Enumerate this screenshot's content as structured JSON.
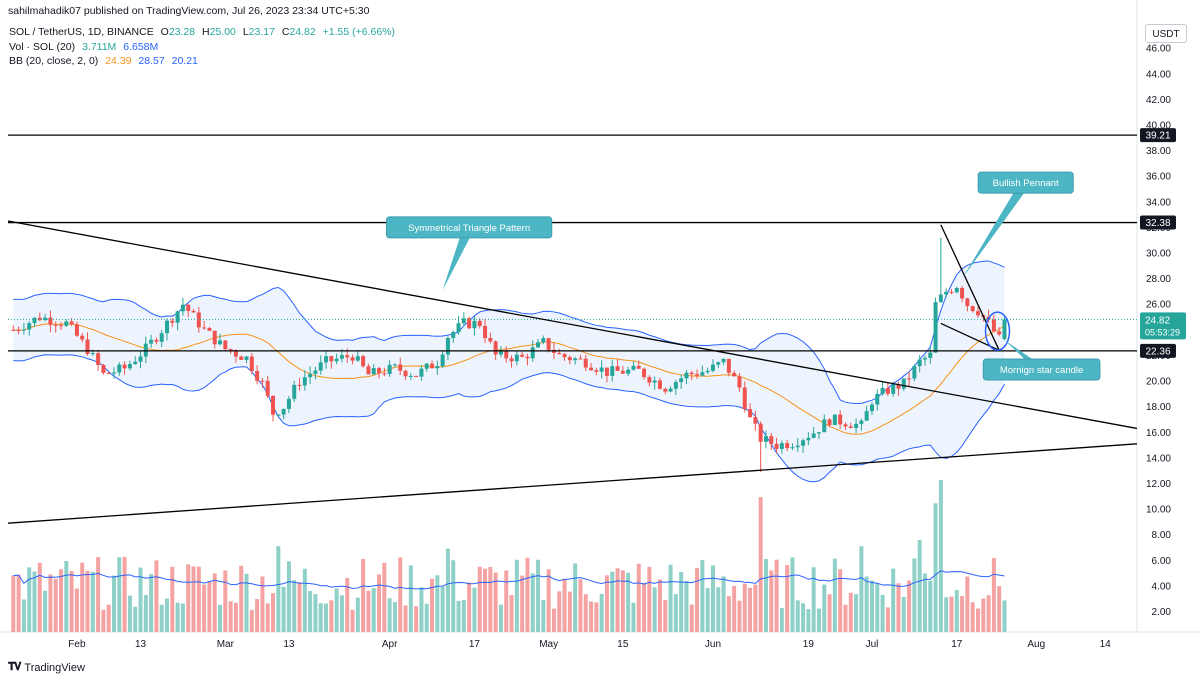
{
  "header": {
    "publish_line": "sahilmahadik07 published on TradingView.com, Jul 26, 2023 23:34 UTC+5:30",
    "symbol_line": "SOL / TetherUS, 1D, BINANCE",
    "ohlc": {
      "o_label": "O",
      "o": "23.28",
      "h_label": "H",
      "h": "25.00",
      "l_label": "L",
      "l": "23.17",
      "c_label": "C",
      "c": "24.82",
      "change": "+1.55 (+6.66%)"
    },
    "vol_line": {
      "label": "Vol · SOL (20)",
      "v1": "3.711M",
      "v2": "6.658M"
    },
    "bb_line": {
      "label": "BB (20, close, 2, 0)",
      "basis": "24.39",
      "upper": "28.57",
      "lower": "20.21"
    }
  },
  "currency": "USDT",
  "footer_logo": "TradingView",
  "colors": {
    "bull": "#26a69a",
    "bear": "#ef5350",
    "vol_bull": "#8fd1c8",
    "vol_bear": "#f5a3a2",
    "bb_band": "#2962ff",
    "bb_basis": "#f7931a",
    "bb_fill": "#e3ecfb",
    "line": "#000000",
    "callout": "#4db6c4",
    "accent": "#131722"
  },
  "chart_data": {
    "type": "candlestick",
    "title": "SOL / TetherUS, 1D, BINANCE",
    "y_axis": {
      "min": 0.4,
      "max": 48.2,
      "ticks": [
        2,
        4,
        6,
        8,
        10,
        12,
        14,
        16,
        18,
        20,
        22,
        24,
        26,
        28,
        30,
        32,
        34,
        36,
        38,
        40,
        42,
        44,
        46
      ]
    },
    "x_axis": {
      "labels": [
        {
          "date": "2023-02-01",
          "text": "Feb"
        },
        {
          "date": "2023-02-13",
          "text": "13"
        },
        {
          "date": "2023-03-01",
          "text": "Mar"
        },
        {
          "date": "2023-03-13",
          "text": "13"
        },
        {
          "date": "2023-04-01",
          "text": "Apr"
        },
        {
          "date": "2023-04-17",
          "text": "17"
        },
        {
          "date": "2023-05-01",
          "text": "May"
        },
        {
          "date": "2023-05-15",
          "text": "15"
        },
        {
          "date": "2023-06-01",
          "text": "Jun"
        },
        {
          "date": "2023-06-19",
          "text": "19"
        },
        {
          "date": "2023-07-01",
          "text": "Jul"
        },
        {
          "date": "2023-07-17",
          "text": "17"
        },
        {
          "date": "2023-08-01",
          "text": "Aug"
        },
        {
          "date": "2023-08-14",
          "text": "14"
        }
      ],
      "first_date": "2023-01-19",
      "last_date": "2023-08-20"
    },
    "first_candle_date": "2023-01-20",
    "price_path": [
      [
        "2023-01-20",
        24.0
      ],
      [
        "2023-01-25",
        25.0
      ],
      [
        "2023-01-30",
        24.5
      ],
      [
        "2023-02-03",
        22.5
      ],
      [
        "2023-02-06",
        20.5
      ],
      [
        "2023-02-10",
        21.0
      ],
      [
        "2023-02-14",
        22.5
      ],
      [
        "2023-02-18",
        24.5
      ],
      [
        "2023-02-21",
        26.0
      ],
      [
        "2023-02-25",
        24.0
      ],
      [
        "2023-03-01",
        22.5
      ],
      [
        "2023-03-05",
        21.8
      ],
      [
        "2023-03-08",
        19.8
      ],
      [
        "2023-03-10",
        17.5
      ],
      [
        "2023-03-12",
        18.0
      ],
      [
        "2023-03-15",
        20.0
      ],
      [
        "2023-03-20",
        21.5
      ],
      [
        "2023-03-25",
        22.0
      ],
      [
        "2023-03-28",
        20.5
      ],
      [
        "2023-04-02",
        21.0
      ],
      [
        "2023-04-06",
        20.5
      ],
      [
        "2023-04-10",
        21.5
      ],
      [
        "2023-04-12",
        23.5
      ],
      [
        "2023-04-15",
        24.5
      ],
      [
        "2023-04-18",
        24.5
      ],
      [
        "2023-04-21",
        22.0
      ],
      [
        "2023-04-26",
        21.8
      ],
      [
        "2023-04-30",
        23.0
      ],
      [
        "2023-05-03",
        22.0
      ],
      [
        "2023-05-08",
        21.5
      ],
      [
        "2023-05-12",
        20.7
      ],
      [
        "2023-05-18",
        20.8
      ],
      [
        "2023-05-23",
        19.5
      ],
      [
        "2023-05-27",
        20.5
      ],
      [
        "2023-05-31",
        20.8
      ],
      [
        "2023-06-03",
        21.5
      ],
      [
        "2023-06-06",
        19.5
      ],
      [
        "2023-06-08",
        17.0
      ],
      [
        "2023-06-10",
        15.5
      ],
      [
        "2023-06-13",
        15.0
      ],
      [
        "2023-06-16",
        15.2
      ],
      [
        "2023-06-20",
        16.0
      ],
      [
        "2023-06-23",
        17.0
      ],
      [
        "2023-06-26",
        16.8
      ],
      [
        "2023-06-29",
        16.5
      ],
      [
        "2023-07-01",
        18.5
      ],
      [
        "2023-07-04",
        19.3
      ],
      [
        "2023-07-07",
        19.8
      ],
      [
        "2023-07-10",
        21.5
      ],
      [
        "2023-07-12",
        22.0
      ],
      [
        "2023-07-13",
        26.0
      ],
      [
        "2023-07-15",
        27.0
      ],
      [
        "2023-07-17",
        27.5
      ],
      [
        "2023-07-19",
        26.0
      ],
      [
        "2023-07-21",
        25.5
      ],
      [
        "2023-07-23",
        24.5
      ],
      [
        "2023-07-25",
        23.27
      ],
      [
        "2023-07-26",
        24.82
      ]
    ],
    "spike_high": {
      "date": "2023-07-14",
      "high": 31.2
    },
    "big_drop": {
      "date": "2023-06-10",
      "low": 12.9
    },
    "last_candle": {
      "date": "2023-07-26",
      "open": 23.28,
      "high": 25.0,
      "low": 23.17,
      "close": 24.82
    },
    "volume_profile": {
      "base_range": [
        1.8,
        6.2
      ],
      "spikes": [
        {
          "date": "2023-06-10",
          "value": 11.0
        },
        {
          "date": "2023-07-14",
          "value": 12.4
        },
        {
          "date": "2023-07-13",
          "value": 10.5
        },
        {
          "date": "2023-06-29",
          "value": 7.0
        },
        {
          "date": "2023-07-10",
          "value": 7.5
        },
        {
          "date": "2023-07-09",
          "value": 6.0
        },
        {
          "date": "2023-04-12",
          "value": 6.8
        },
        {
          "date": "2023-03-11",
          "value": 7.0
        }
      ]
    },
    "horizontal_levels": [
      {
        "price": 39.21,
        "label": "39.21"
      },
      {
        "price": 32.38,
        "label": "32.38"
      },
      {
        "price": 22.36,
        "label": "22.36"
      }
    ],
    "last_price_label": {
      "price": 24.82,
      "label": "24.82",
      "countdown": "05:53:29"
    },
    "trendlines": [
      {
        "from": [
          "2023-01-19",
          32.5
        ],
        "to": [
          "2023-08-20",
          16.3
        ]
      },
      {
        "from": [
          "2023-01-19",
          8.9
        ],
        "to": [
          "2023-08-20",
          15.1
        ]
      },
      {
        "from": [
          "2023-07-14",
          32.2
        ],
        "to": [
          "2023-07-25",
          22.4
        ]
      },
      {
        "from": [
          "2023-07-14",
          24.5
        ],
        "to": [
          "2023-07-25",
          22.4
        ]
      }
    ],
    "annotations": [
      {
        "text": "Symmetrical Triangle Pattern",
        "anchor": [
          "2023-04-11",
          27.1
        ],
        "box_at": [
          "2023-04-16",
          32.0
        ]
      },
      {
        "text": "Bullish Pennant",
        "anchor": [
          "2023-07-18",
          28.0
        ],
        "box_at": [
          "2023-07-30",
          35.5
        ]
      },
      {
        "text": "Mornign star candle",
        "anchor": [
          "2023-07-26",
          23.2
        ],
        "box_at": [
          "2023-08-02",
          20.9
        ]
      }
    ]
  }
}
